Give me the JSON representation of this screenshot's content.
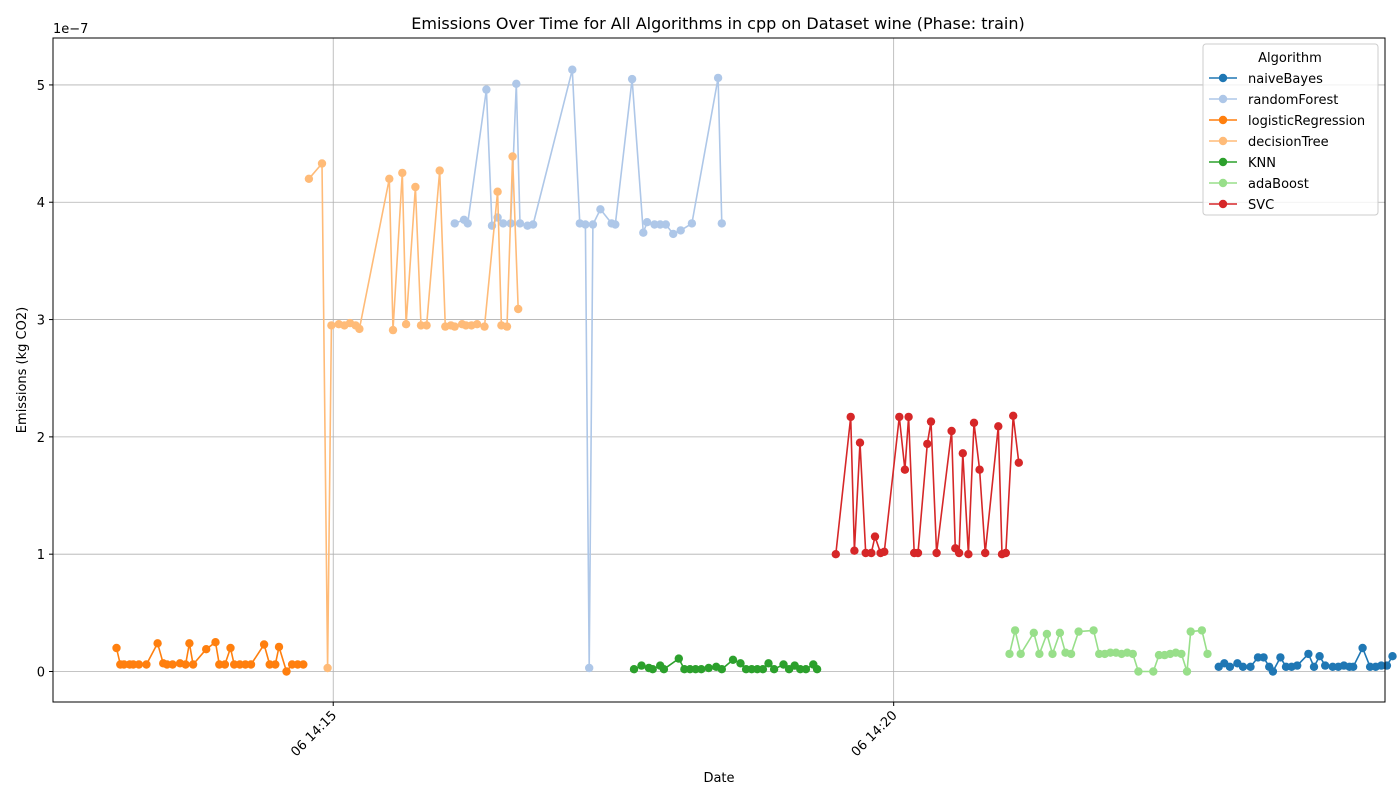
{
  "chart_data": {
    "type": "line",
    "title": "Emissions Over Time for All Algorithms in cpp on Dataset wine (Phase: train)",
    "xlabel": "Date",
    "ylabel": "Emissions (kg CO2)",
    "y_scale_label": "1e−7",
    "x_axis_type": "datetime",
    "x_date": "06",
    "xlim": [
      "14:12:30",
      "14:24:23"
    ],
    "ylim": [
      -2.6e-08,
      5.4e-07
    ],
    "x_ticks": [
      {
        "time": "14:15:00",
        "label": "06 14:15"
      },
      {
        "time": "14:20:00",
        "label": "06 14:20"
      }
    ],
    "y_ticks": [
      {
        "value": 0,
        "label": "0"
      },
      {
        "value": 1e-07,
        "label": "1"
      },
      {
        "value": 2e-07,
        "label": "2"
      },
      {
        "value": 3e-07,
        "label": "3"
      },
      {
        "value": 4e-07,
        "label": "4"
      },
      {
        "value": 5e-07,
        "label": "5"
      }
    ],
    "grid": true,
    "legend": {
      "title": "Algorithm",
      "position": "top-right"
    },
    "series": [
      {
        "name": "naiveBayes",
        "color": "#1f77b4",
        "points": [
          [
            "14:22:54",
            4e-09
          ],
          [
            "14:22:57",
            7e-09
          ],
          [
            "14:23:00",
            4e-09
          ],
          [
            "14:23:04",
            7e-09
          ],
          [
            "14:23:07",
            4e-09
          ],
          [
            "14:23:11",
            4e-09
          ],
          [
            "14:23:15",
            1.2e-08
          ],
          [
            "14:23:18",
            1.2e-08
          ],
          [
            "14:23:21",
            4e-09
          ],
          [
            "14:23:23",
            0
          ],
          [
            "14:23:27",
            1.2e-08
          ],
          [
            "14:23:30",
            4e-09
          ],
          [
            "14:23:33",
            4e-09
          ],
          [
            "14:23:36",
            5e-09
          ],
          [
            "14:23:42",
            1.5e-08
          ],
          [
            "14:23:45",
            4e-09
          ],
          [
            "14:23:48",
            1.3e-08
          ],
          [
            "14:23:51",
            5e-09
          ],
          [
            "14:23:55",
            4e-09
          ],
          [
            "14:23:58",
            4e-09
          ],
          [
            "14:24:01",
            5e-09
          ],
          [
            "14:24:04",
            4e-09
          ],
          [
            "14:24:06",
            4e-09
          ],
          [
            "14:24:11",
            2e-08
          ],
          [
            "14:24:15",
            4e-09
          ],
          [
            "14:24:18",
            4e-09
          ],
          [
            "14:24:21",
            5e-09
          ],
          [
            "14:24:24",
            5e-09
          ],
          [
            "14:24:27",
            1.3e-08
          ]
        ]
      },
      {
        "name": "randomForest",
        "color": "#aec7e8",
        "points": [
          [
            "14:16:05",
            3.82e-07
          ],
          [
            "14:16:10",
            3.85e-07
          ],
          [
            "14:16:12",
            3.82e-07
          ],
          [
            "14:16:22",
            4.96e-07
          ],
          [
            "14:16:25",
            3.8e-07
          ],
          [
            "14:16:28",
            3.87e-07
          ],
          [
            "14:16:31",
            3.82e-07
          ],
          [
            "14:16:35",
            3.82e-07
          ],
          [
            "14:16:38",
            5.01e-07
          ],
          [
            "14:16:40",
            3.82e-07
          ],
          [
            "14:16:44",
            3.8e-07
          ],
          [
            "14:16:47",
            3.81e-07
          ],
          [
            "14:17:08",
            5.13e-07
          ],
          [
            "14:17:12",
            3.82e-07
          ],
          [
            "14:17:15",
            3.81e-07
          ],
          [
            "14:17:17",
            3e-09
          ],
          [
            "14:17:19",
            3.81e-07
          ],
          [
            "14:17:23",
            3.94e-07
          ],
          [
            "14:17:29",
            3.82e-07
          ],
          [
            "14:17:31",
            3.81e-07
          ],
          [
            "14:17:40",
            5.05e-07
          ],
          [
            "14:17:46",
            3.74e-07
          ],
          [
            "14:17:48",
            3.83e-07
          ],
          [
            "14:17:52",
            3.81e-07
          ],
          [
            "14:17:55",
            3.81e-07
          ],
          [
            "14:17:58",
            3.81e-07
          ],
          [
            "14:18:02",
            3.73e-07
          ],
          [
            "14:18:06",
            3.76e-07
          ],
          [
            "14:18:12",
            3.82e-07
          ],
          [
            "14:18:26",
            5.06e-07
          ],
          [
            "14:18:28",
            3.82e-07
          ]
        ]
      },
      {
        "name": "logisticRegression",
        "color": "#ff7f0e",
        "points": [
          [
            "14:13:04",
            2e-08
          ],
          [
            "14:13:06",
            6e-09
          ],
          [
            "14:13:08",
            6e-09
          ],
          [
            "14:13:11",
            6e-09
          ],
          [
            "14:13:13",
            6e-09
          ],
          [
            "14:13:16",
            6e-09
          ],
          [
            "14:13:20",
            6e-09
          ],
          [
            "14:13:26",
            2.4e-08
          ],
          [
            "14:13:29",
            7e-09
          ],
          [
            "14:13:31",
            6e-09
          ],
          [
            "14:13:34",
            6e-09
          ],
          [
            "14:13:38",
            7e-09
          ],
          [
            "14:13:41",
            6e-09
          ],
          [
            "14:13:43",
            2.4e-08
          ],
          [
            "14:13:45",
            6e-09
          ],
          [
            "14:13:52",
            1.9e-08
          ],
          [
            "14:13:57",
            2.5e-08
          ],
          [
            "14:13:59",
            6e-09
          ],
          [
            "14:14:02",
            6e-09
          ],
          [
            "14:14:05",
            2e-08
          ],
          [
            "14:14:07",
            6e-09
          ],
          [
            "14:14:10",
            6e-09
          ],
          [
            "14:14:13",
            6e-09
          ],
          [
            "14:14:16",
            6e-09
          ],
          [
            "14:14:23",
            2.3e-08
          ],
          [
            "14:14:26",
            6e-09
          ],
          [
            "14:14:29",
            6e-09
          ],
          [
            "14:14:31",
            2.1e-08
          ],
          [
            "14:14:35",
            0
          ],
          [
            "14:14:38",
            6e-09
          ],
          [
            "14:14:41",
            6e-09
          ],
          [
            "14:14:44",
            6e-09
          ]
        ]
      },
      {
        "name": "decisionTree",
        "color": "#ffbb78",
        "points": [
          [
            "14:14:47",
            4.2e-07
          ],
          [
            "14:14:54",
            4.33e-07
          ],
          [
            "14:14:57",
            3e-09
          ],
          [
            "14:14:59",
            2.95e-07
          ],
          [
            "14:15:03",
            2.96e-07
          ],
          [
            "14:15:06",
            2.95e-07
          ],
          [
            "14:15:09",
            2.97e-07
          ],
          [
            "14:15:12",
            2.95e-07
          ],
          [
            "14:15:14",
            2.92e-07
          ],
          [
            "14:15:30",
            4.2e-07
          ],
          [
            "14:15:32",
            2.91e-07
          ],
          [
            "14:15:37",
            4.25e-07
          ],
          [
            "14:15:39",
            2.96e-07
          ],
          [
            "14:15:44",
            4.13e-07
          ],
          [
            "14:15:47",
            2.95e-07
          ],
          [
            "14:15:50",
            2.95e-07
          ],
          [
            "14:15:57",
            4.27e-07
          ],
          [
            "14:16:00",
            2.94e-07
          ],
          [
            "14:16:03",
            2.95e-07
          ],
          [
            "14:16:05",
            2.94e-07
          ],
          [
            "14:16:09",
            2.96e-07
          ],
          [
            "14:16:11",
            2.95e-07
          ],
          [
            "14:16:14",
            2.95e-07
          ],
          [
            "14:16:17",
            2.96e-07
          ],
          [
            "14:16:21",
            2.94e-07
          ],
          [
            "14:16:28",
            4.09e-07
          ],
          [
            "14:16:30",
            2.95e-07
          ],
          [
            "14:16:33",
            2.94e-07
          ],
          [
            "14:16:36",
            4.39e-07
          ],
          [
            "14:16:39",
            3.09e-07
          ]
        ]
      },
      {
        "name": "KNN",
        "color": "#2ca02c",
        "points": [
          [
            "14:17:41",
            2e-09
          ],
          [
            "14:17:45",
            5e-09
          ],
          [
            "14:17:49",
            3e-09
          ],
          [
            "14:17:51",
            2e-09
          ],
          [
            "14:17:55",
            5e-09
          ],
          [
            "14:17:57",
            2e-09
          ],
          [
            "14:18:05",
            1.1e-08
          ],
          [
            "14:18:08",
            2e-09
          ],
          [
            "14:18:11",
            2e-09
          ],
          [
            "14:18:14",
            2e-09
          ],
          [
            "14:18:17",
            2e-09
          ],
          [
            "14:18:21",
            3e-09
          ],
          [
            "14:18:25",
            4e-09
          ],
          [
            "14:18:28",
            2e-09
          ],
          [
            "14:18:34",
            1e-08
          ],
          [
            "14:18:38",
            7e-09
          ],
          [
            "14:18:41",
            2e-09
          ],
          [
            "14:18:44",
            2e-09
          ],
          [
            "14:18:47",
            2e-09
          ],
          [
            "14:18:50",
            2e-09
          ],
          [
            "14:18:53",
            7e-09
          ],
          [
            "14:18:56",
            2e-09
          ],
          [
            "14:19:01",
            6e-09
          ],
          [
            "14:19:04",
            2e-09
          ],
          [
            "14:19:07",
            5e-09
          ],
          [
            "14:19:10",
            2e-09
          ],
          [
            "14:19:13",
            2e-09
          ],
          [
            "14:19:17",
            6e-09
          ],
          [
            "14:19:19",
            2e-09
          ]
        ]
      },
      {
        "name": "adaBoost",
        "color": "#98df8a",
        "points": [
          [
            "14:21:02",
            1.5e-08
          ],
          [
            "14:21:05",
            3.5e-08
          ],
          [
            "14:21:08",
            1.5e-08
          ],
          [
            "14:21:15",
            3.3e-08
          ],
          [
            "14:21:18",
            1.5e-08
          ],
          [
            "14:21:22",
            3.2e-08
          ],
          [
            "14:21:25",
            1.5e-08
          ],
          [
            "14:21:29",
            3.3e-08
          ],
          [
            "14:21:32",
            1.6e-08
          ],
          [
            "14:21:35",
            1.5e-08
          ],
          [
            "14:21:39",
            3.4e-08
          ],
          [
            "14:21:47",
            3.5e-08
          ],
          [
            "14:21:50",
            1.5e-08
          ],
          [
            "14:21:53",
            1.5e-08
          ],
          [
            "14:21:56",
            1.6e-08
          ],
          [
            "14:21:59",
            1.6e-08
          ],
          [
            "14:22:02",
            1.5e-08
          ],
          [
            "14:22:05",
            1.6e-08
          ],
          [
            "14:22:08",
            1.5e-08
          ],
          [
            "14:22:11",
            0
          ],
          [
            "14:22:19",
            0
          ],
          [
            "14:22:22",
            1.4e-08
          ],
          [
            "14:22:25",
            1.4e-08
          ],
          [
            "14:22:28",
            1.5e-08
          ],
          [
            "14:22:31",
            1.6e-08
          ],
          [
            "14:22:34",
            1.5e-08
          ],
          [
            "14:22:37",
            0
          ],
          [
            "14:22:39",
            3.4e-08
          ],
          [
            "14:22:45",
            3.5e-08
          ],
          [
            "14:22:48",
            1.5e-08
          ]
        ]
      },
      {
        "name": "SVC",
        "color": "#d62728",
        "points": [
          [
            "14:19:29",
            1e-07
          ],
          [
            "14:19:37",
            2.17e-07
          ],
          [
            "14:19:39",
            1.03e-07
          ],
          [
            "14:19:42",
            1.95e-07
          ],
          [
            "14:19:45",
            1.01e-07
          ],
          [
            "14:19:48",
            1.01e-07
          ],
          [
            "14:19:50",
            1.15e-07
          ],
          [
            "14:19:53",
            1.01e-07
          ],
          [
            "14:19:55",
            1.02e-07
          ],
          [
            "14:20:03",
            2.17e-07
          ],
          [
            "14:20:06",
            1.72e-07
          ],
          [
            "14:20:08",
            2.17e-07
          ],
          [
            "14:20:11",
            1.01e-07
          ],
          [
            "14:20:13",
            1.01e-07
          ],
          [
            "14:20:18",
            1.94e-07
          ],
          [
            "14:20:20",
            2.13e-07
          ],
          [
            "14:20:23",
            1.01e-07
          ],
          [
            "14:20:31",
            2.05e-07
          ],
          [
            "14:20:33",
            1.05e-07
          ],
          [
            "14:20:35",
            1.01e-07
          ],
          [
            "14:20:37",
            1.86e-07
          ],
          [
            "14:20:40",
            1e-07
          ],
          [
            "14:20:43",
            2.12e-07
          ],
          [
            "14:20:46",
            1.72e-07
          ],
          [
            "14:20:49",
            1.01e-07
          ],
          [
            "14:20:56",
            2.09e-07
          ],
          [
            "14:20:58",
            1e-07
          ],
          [
            "14:21:00",
            1.01e-07
          ],
          [
            "14:21:04",
            2.18e-07
          ],
          [
            "14:21:07",
            1.78e-07
          ]
        ]
      }
    ]
  }
}
